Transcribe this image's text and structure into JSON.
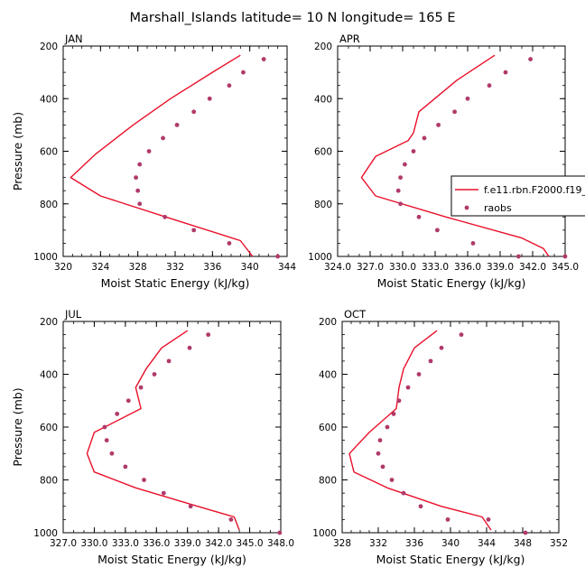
{
  "title": "Marshall_Islands  latitude= 10 N longitude= 165 E",
  "colors": {
    "model": "#e8102a",
    "obs": "#b03a6a",
    "axis": "#000000"
  },
  "legend": {
    "placement": "right-of-APR-panel",
    "entries": [
      "f.e11.rbn.F2000.f19_",
      "raobs"
    ]
  },
  "chart_data": [
    {
      "type": "scatter",
      "panel_label": "JAN",
      "xlabel": "Moist Static Energy (kJ/kg)",
      "ylabel": "Pressure (mb)",
      "xlim": [
        320,
        344
      ],
      "ylim": [
        1000,
        200
      ],
      "xticks": [
        320,
        324,
        328,
        332,
        336,
        340,
        344
      ],
      "xtick_labels": [
        "320",
        "324",
        "328",
        "332",
        "336",
        "340",
        "344"
      ],
      "xminor": 1,
      "yticks": [
        200,
        400,
        600,
        800,
        1000
      ],
      "yminor": 50,
      "series": [
        {
          "name": "f.e11.rbn.F2000.f19_",
          "kind": "line",
          "x": [
            339.0,
            336.0,
            331.5,
            327.5,
            323.5,
            320.8,
            324.0,
            331.0,
            339.0,
            340.3
          ],
          "y": [
            235,
            300,
            400,
            500,
            610,
            700,
            770,
            850,
            940,
            1000
          ]
        },
        {
          "name": "raobs",
          "kind": "points",
          "x": [
            341.5,
            339.3,
            337.8,
            335.7,
            334.0,
            332.2,
            330.7,
            329.2,
            328.2,
            327.8,
            328.0,
            328.2,
            330.9,
            334.0,
            337.8,
            343.0
          ],
          "y": [
            250,
            300,
            350,
            400,
            450,
            500,
            550,
            600,
            650,
            700,
            750,
            800,
            850,
            900,
            950,
            1000
          ]
        }
      ]
    },
    {
      "type": "scatter",
      "panel_label": "APR",
      "xlabel": "Moist Static Energy (kJ/kg)",
      "ylabel": "",
      "xlim": [
        324,
        345
      ],
      "ylim": [
        1000,
        200
      ],
      "xticks": [
        324,
        327,
        330,
        333,
        336,
        339,
        342,
        345
      ],
      "xtick_labels": [
        "324.0",
        "327.0",
        "330.0",
        "333.0",
        "336.0",
        "339.0",
        "342.0",
        "345.0"
      ],
      "xminor": 1,
      "yticks": [
        200,
        400,
        600,
        800,
        1000
      ],
      "yminor": 50,
      "series": [
        {
          "name": "f.e11.rbn.F2000.f19_",
          "kind": "line",
          "x": [
            338.5,
            335.0,
            331.5,
            331.0,
            330.5,
            327.5,
            326.2,
            327.5,
            334.0,
            341.0,
            343.0,
            343.5
          ],
          "y": [
            235,
            330,
            450,
            530,
            560,
            620,
            700,
            770,
            850,
            930,
            970,
            1000
          ]
        },
        {
          "name": "raobs",
          "kind": "points",
          "x": [
            341.8,
            339.5,
            338.0,
            336.0,
            334.8,
            333.3,
            332.0,
            331.0,
            330.2,
            329.8,
            329.6,
            329.8,
            331.5,
            333.2,
            336.5,
            340.7,
            345.0
          ],
          "y": [
            250,
            300,
            350,
            400,
            450,
            500,
            550,
            600,
            650,
            700,
            750,
            800,
            850,
            900,
            950,
            1000,
            1000
          ]
        }
      ]
    },
    {
      "type": "scatter",
      "panel_label": "JUL",
      "xlabel": "Moist Static Energy (kJ/kg)",
      "ylabel": "Pressure (mb)",
      "xlim": [
        327,
        348
      ],
      "ylim": [
        1000,
        200
      ],
      "xticks": [
        327,
        330,
        333,
        336,
        339,
        342,
        345,
        348
      ],
      "xtick_labels": [
        "327.0",
        "330.0",
        "333.0",
        "336.0",
        "339.0",
        "342.0",
        "345.0",
        "348.0"
      ],
      "xminor": 1,
      "yticks": [
        200,
        400,
        600,
        800,
        1000
      ],
      "yminor": 50,
      "series": [
        {
          "name": "f.e11.rbn.F2000.f19_",
          "kind": "line",
          "x": [
            339.0,
            336.5,
            335.0,
            334.0,
            334.5,
            330.0,
            329.3,
            330.0,
            334.0,
            340.0,
            343.5,
            344.0
          ],
          "y": [
            235,
            300,
            380,
            450,
            530,
            620,
            700,
            770,
            830,
            900,
            940,
            990
          ]
        },
        {
          "name": "raobs",
          "kind": "points",
          "x": [
            341.0,
            339.2,
            337.2,
            335.8,
            334.5,
            333.3,
            332.2,
            331.0,
            331.2,
            331.7,
            333.0,
            334.8,
            336.7,
            339.3,
            343.2,
            347.9
          ],
          "y": [
            250,
            300,
            350,
            400,
            450,
            500,
            550,
            600,
            650,
            700,
            750,
            800,
            850,
            900,
            950,
            1000
          ]
        }
      ]
    },
    {
      "type": "scatter",
      "panel_label": "OCT",
      "xlabel": "Moist Static Energy (kJ/kg)",
      "ylabel": "",
      "xlim": [
        328,
        352
      ],
      "ylim": [
        1000,
        200
      ],
      "xticks": [
        328,
        332,
        336,
        340,
        344,
        348,
        352
      ],
      "xtick_labels": [
        "328",
        "332",
        "336",
        "340",
        "344",
        "348",
        "352"
      ],
      "xminor": 1,
      "yticks": [
        200,
        400,
        600,
        800,
        1000
      ],
      "yminor": 50,
      "series": [
        {
          "name": "f.e11.rbn.F2000.f19_",
          "kind": "line",
          "x": [
            338.5,
            336.0,
            334.8,
            334.3,
            334.0,
            331.0,
            328.8,
            329.3,
            333.0,
            339.0,
            343.5,
            344.5
          ],
          "y": [
            235,
            300,
            380,
            450,
            530,
            620,
            700,
            770,
            830,
            900,
            940,
            990
          ]
        },
        {
          "name": "raobs",
          "kind": "points",
          "x": [
            341.2,
            339.0,
            337.8,
            336.5,
            335.3,
            334.3,
            333.7,
            333.0,
            332.2,
            332.0,
            332.5,
            333.5,
            334.8,
            336.7,
            339.7,
            344.2,
            348.3
          ],
          "y": [
            250,
            300,
            350,
            400,
            450,
            500,
            550,
            600,
            650,
            700,
            750,
            800,
            850,
            900,
            950,
            950,
            1000
          ]
        }
      ]
    }
  ]
}
